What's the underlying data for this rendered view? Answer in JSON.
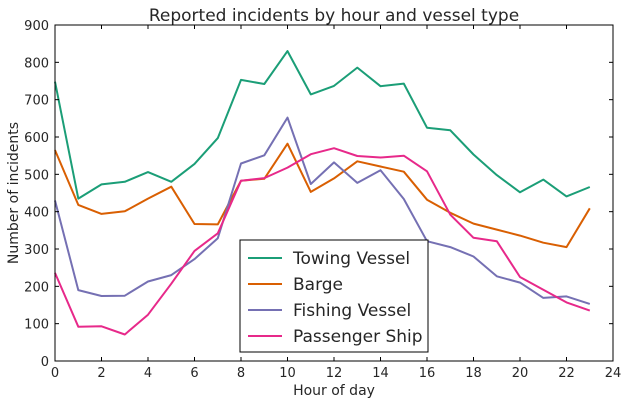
{
  "chart_data": {
    "type": "line",
    "title": "Reported incidents by hour and vessel type",
    "xlabel": "Hour of day",
    "ylabel": "Number of incidents",
    "xlim": [
      0,
      24
    ],
    "ylim": [
      0,
      900
    ],
    "xticks": [
      "0",
      "2",
      "4",
      "6",
      "8",
      "10",
      "12",
      "14",
      "16",
      "18",
      "20",
      "22",
      "24"
    ],
    "yticks": [
      "0",
      "100",
      "200",
      "300",
      "400",
      "500",
      "600",
      "700",
      "800",
      "900"
    ],
    "grid": false,
    "legend_position": "lower-center",
    "x": [
      0,
      1,
      2,
      3,
      4,
      5,
      6,
      7,
      8,
      9,
      10,
      11,
      12,
      13,
      14,
      15,
      16,
      17,
      18,
      19,
      20,
      21,
      22,
      23
    ],
    "series": [
      {
        "name": "Towing Vessel",
        "color": "#1b9e77",
        "values": [
          748,
          435,
          473,
          480,
          506,
          480,
          528,
          597,
          753,
          742,
          830,
          714,
          737,
          786,
          736,
          743,
          625,
          618,
          553,
          498,
          452,
          486,
          441,
          466
        ]
      },
      {
        "name": "Barge",
        "color": "#d95f02",
        "values": [
          565,
          418,
          394,
          401,
          435,
          467,
          367,
          366,
          483,
          488,
          582,
          453,
          489,
          535,
          521,
          507,
          432,
          397,
          368,
          352,
          336,
          317,
          305,
          409
        ]
      },
      {
        "name": "Fishing Vessel",
        "color": "#7570b3",
        "values": [
          430,
          190,
          174,
          175,
          213,
          230,
          273,
          329,
          529,
          551,
          652,
          474,
          532,
          477,
          511,
          434,
          321,
          305,
          280,
          227,
          210,
          169,
          173,
          153
        ]
      },
      {
        "name": "Passenger Ship",
        "color": "#e7298a",
        "values": [
          236,
          92,
          93,
          71,
          124,
          207,
          295,
          342,
          483,
          490,
          518,
          554,
          570,
          549,
          545,
          550,
          508,
          392,
          330,
          321,
          225,
          191,
          157,
          135
        ]
      }
    ]
  }
}
